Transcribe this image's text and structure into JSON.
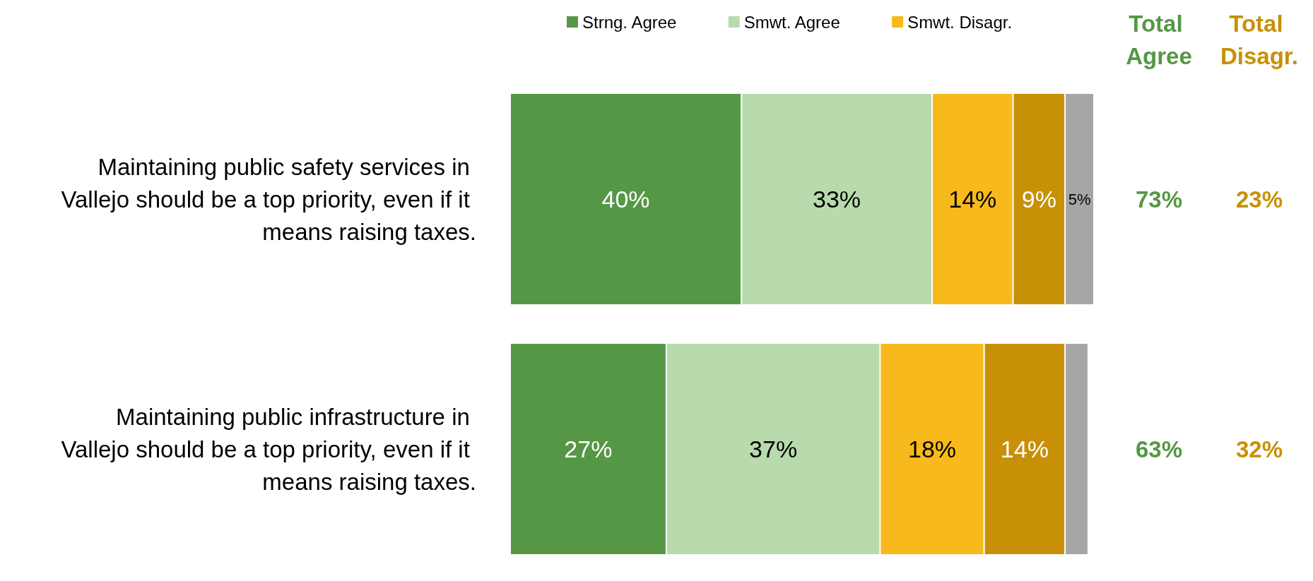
{
  "chart_data": {
    "type": "bar",
    "orientation": "horizontal",
    "stacked": true,
    "legend": "top",
    "categories": [
      "Maintaining public safety services in Vallejo should be a top priority, even if it means raising taxes.",
      "Maintaining public infrastructure in Vallejo should be a top priority, even if it means raising taxes."
    ],
    "series": [
      {
        "name": "Strng. Agree",
        "color": "#559745",
        "values": [
          40,
          27
        ],
        "value_labels": [
          "40%",
          "27%"
        ]
      },
      {
        "name": "Smwt. Agree",
        "color": "#b8dbad",
        "values": [
          33,
          37
        ],
        "value_labels": [
          "33%",
          "37%"
        ]
      },
      {
        "name": "Smwt. Disagr.",
        "color": "#f8b91c",
        "values": [
          14,
          18
        ],
        "value_labels": [
          "14%",
          "18%"
        ]
      },
      {
        "color": "#c89006",
        "values": [
          9,
          14
        ],
        "value_labels": [
          "9%",
          "14%"
        ]
      },
      {
        "color": "#a6a6a6",
        "values": [
          5,
          4
        ],
        "value_labels": [
          "5%",
          null
        ]
      }
    ],
    "annotations": [
      "Total Agree",
      "Total Disagr.",
      "73%",
      "23%",
      "63%",
      "32%"
    ]
  }
}
